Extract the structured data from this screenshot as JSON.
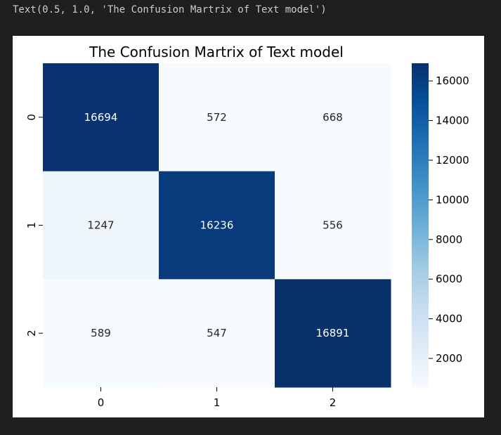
{
  "output_text": "Text(0.5, 1.0, 'The Confusion Martrix of Text model')",
  "chart_data": {
    "type": "heatmap",
    "title": "The Confusion Martrix of Text model",
    "xlabel": "",
    "ylabel": "",
    "x_tick_labels": [
      "0",
      "1",
      "2"
    ],
    "y_tick_labels": [
      "0",
      "1",
      "2"
    ],
    "matrix": [
      [
        16694,
        572,
        668
      ],
      [
        1247,
        16236,
        556
      ],
      [
        589,
        547,
        16891
      ]
    ],
    "colormap": "Blues",
    "color_range": [
      547,
      16891
    ],
    "colorbar_ticks": [
      2000,
      4000,
      6000,
      8000,
      10000,
      12000,
      14000,
      16000
    ],
    "colorbar_tick_labels": [
      "2000",
      "4000",
      "6000",
      "8000",
      "10000",
      "12000",
      "14000",
      "16000"
    ],
    "colors": {
      "min": "#f7fbff",
      "max": "#08306b",
      "annot_light": "#ffffff",
      "annot_dark": "#262626"
    }
  }
}
